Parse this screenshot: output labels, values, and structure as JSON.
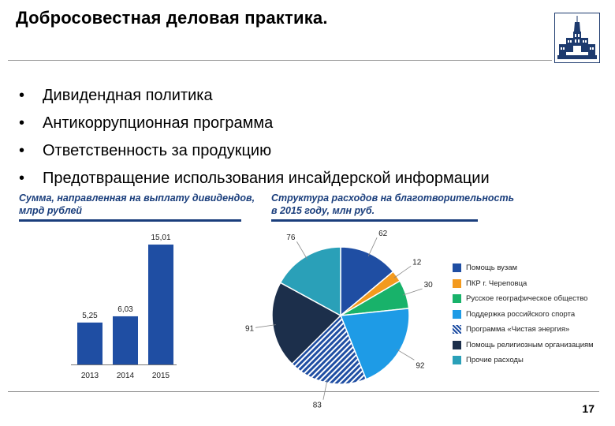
{
  "slide": {
    "title": "Добросовестная деловая практика.",
    "bullets": [
      {
        "text": "Дивидендная политика"
      },
      {
        "text": "Антикоррупционная программа"
      },
      {
        "text": "Ответственность за продукцию"
      },
      {
        "text": "Предотвращение использования инсайдерской информации"
      }
    ],
    "bullet_symbol": "•",
    "page_number": "17",
    "logo_icon": "university-building-icon"
  },
  "chart_data": [
    {
      "type": "bar",
      "title_lines": [
        "Сумма, направленная на выплату дивидендов,",
        "млрд рублей"
      ],
      "categories": [
        "2013",
        "2014",
        "2015"
      ],
      "values": [
        5.25,
        6.03,
        15.01
      ],
      "value_labels": [
        "5,25",
        "6,03",
        "15,01"
      ],
      "color": "#1f4ea3",
      "ylim": [
        0,
        16
      ]
    },
    {
      "type": "pie",
      "title_lines": [
        "Структура расходов на благотворительность",
        "в 2015 году, млн руб."
      ],
      "slices": [
        {
          "label": "Помощь вузам",
          "value": 62,
          "value_label": "62",
          "color": "#1f4ea3",
          "pattern": "solid"
        },
        {
          "label": "ПКР г. Череповца",
          "value": 12,
          "value_label": "12",
          "color": "#f39a1e",
          "pattern": "solid"
        },
        {
          "label": "Русское географическое общество",
          "value": 30,
          "value_label": "30",
          "color": "#18b26a",
          "pattern": "solid"
        },
        {
          "label": "Поддержка российского спорта",
          "value": 92,
          "value_label": "92",
          "color": "#1e9be6",
          "pattern": "solid"
        },
        {
          "label": "Программа «Чистая энергия»",
          "value": 83,
          "value_label": "83",
          "color": "#1f4ea3",
          "pattern": "hatched"
        },
        {
          "label": "Помощь религиозным организациям",
          "value": 91,
          "value_label": "91",
          "color": "#1c2f4b",
          "pattern": "solid"
        },
        {
          "label": "Прочие расходы",
          "value": 76,
          "value_label": "76",
          "color": "#2aa0b8",
          "pattern": "solid"
        }
      ],
      "legend_position": "right"
    }
  ]
}
